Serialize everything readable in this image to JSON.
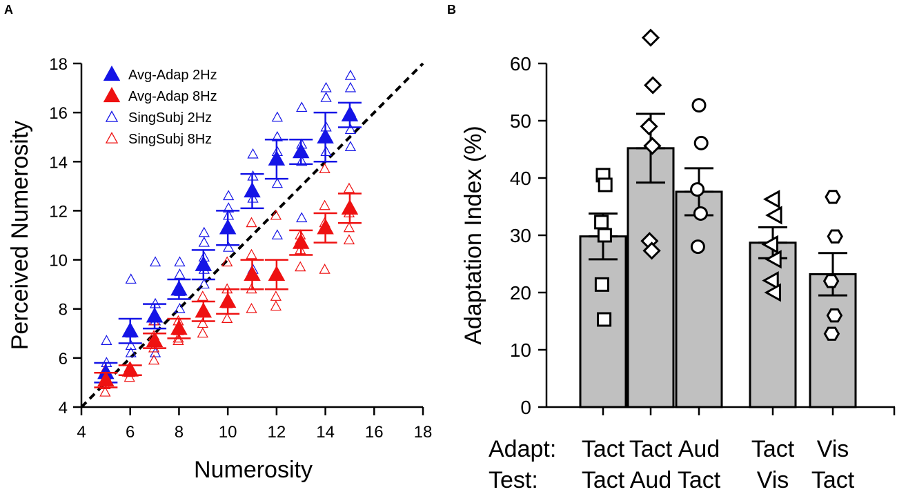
{
  "panel_a_letter": "A",
  "panel_b_letter": "B",
  "chart_data": [
    {
      "type": "scatter",
      "panel": "A",
      "xlabel": "Numerosity",
      "ylabel": "Perceived Numerosity",
      "xlim": [
        4,
        18
      ],
      "ylim": [
        4,
        18
      ],
      "xticks": [
        4,
        6,
        8,
        10,
        12,
        14,
        16,
        18
      ],
      "yticks": [
        4,
        6,
        8,
        10,
        12,
        14,
        16,
        18
      ],
      "reference_line": {
        "style": "dashed",
        "x": [
          4,
          18
        ],
        "y": [
          4,
          18
        ]
      },
      "legend": {
        "placement": "top-left",
        "entries": [
          {
            "label": "Avg-Adap 2Hz",
            "color": "#1414e6",
            "filled": true
          },
          {
            "label": "Avg-Adap 8Hz",
            "color": "#ee1111",
            "filled": true
          },
          {
            "label": "SingSubj 2Hz",
            "color": "#1414e6",
            "filled": false
          },
          {
            "label": "SingSubj 8Hz",
            "color": "#ee1111",
            "filled": false
          }
        ]
      },
      "series": [
        {
          "name": "Avg-Adap 2Hz",
          "color": "#1414e6",
          "x": [
            5,
            6,
            7,
            8,
            9,
            10,
            11,
            12,
            13,
            14,
            15
          ],
          "y": [
            5.4,
            7.1,
            7.7,
            8.8,
            9.8,
            11.3,
            12.8,
            14.1,
            14.4,
            15.0,
            15.9
          ],
          "err": [
            0.4,
            0.5,
            0.5,
            0.4,
            0.6,
            0.7,
            0.7,
            0.8,
            0.5,
            1.0,
            0.5
          ]
        },
        {
          "name": "Avg-Adap 8Hz",
          "color": "#ee1111",
          "x": [
            5,
            6,
            7,
            8,
            9,
            10,
            11,
            12,
            13,
            14,
            15
          ],
          "y": [
            5.1,
            5.5,
            6.7,
            7.2,
            7.9,
            8.3,
            9.4,
            9.4,
            10.7,
            11.3,
            12.1
          ],
          "err": [
            0.3,
            0.2,
            0.3,
            0.4,
            0.4,
            0.5,
            0.6,
            0.6,
            0.5,
            0.6,
            0.6
          ]
        },
        {
          "name": "SingSubj 2Hz",
          "color": "#1414e6",
          "x": [
            5,
            5,
            5,
            6,
            6,
            6,
            6,
            7,
            7,
            7,
            7,
            7,
            8,
            8,
            8,
            8,
            8,
            9,
            9,
            9,
            9,
            9,
            10,
            10,
            10,
            10,
            10,
            11,
            11,
            11,
            11,
            12,
            12,
            12,
            12,
            12,
            13,
            13,
            13,
            13,
            14,
            14,
            14,
            14,
            15,
            15,
            15,
            15,
            15
          ],
          "y": [
            6.7,
            5.8,
            5.1,
            9.2,
            7.0,
            6.5,
            6.2,
            9.9,
            8.2,
            7.5,
            6.7,
            6.2,
            9.9,
            9.4,
            8.7,
            8.0,
            7.2,
            11.1,
            10.7,
            10.1,
            9.6,
            9.0,
            12.6,
            12.1,
            11.8,
            11.3,
            10.5,
            14.3,
            13.4,
            12.5,
            9.6,
            15.8,
            15.0,
            14.4,
            13.1,
            11.0,
            16.2,
            14.7,
            14.0,
            11.7,
            17.0,
            16.6,
            15.4,
            14.4,
            17.5,
            17.0,
            16.0,
            15.3,
            14.6
          ],
          "filled": false
        },
        {
          "name": "SingSubj 8Hz",
          "color": "#ee1111",
          "x": [
            5,
            5,
            5,
            6,
            6,
            6,
            7,
            7,
            7,
            7,
            8,
            8,
            8,
            8,
            9,
            9,
            9,
            9,
            10,
            10,
            10,
            10,
            11,
            11,
            11,
            11,
            12,
            12,
            12,
            12,
            13,
            13,
            13,
            13,
            14,
            14,
            14,
            14,
            15,
            15,
            15,
            15
          ],
          "y": [
            5.5,
            4.9,
            4.6,
            5.6,
            5.4,
            5.2,
            7.5,
            6.9,
            6.4,
            5.9,
            7.5,
            7.1,
            6.8,
            6.7,
            8.5,
            7.9,
            7.4,
            7.0,
            9.9,
            8.8,
            8.2,
            7.6,
            11.5,
            10.2,
            8.8,
            8.0,
            11.8,
            9.4,
            8.5,
            8.1,
            11.0,
            10.8,
            10.4,
            9.7,
            13.7,
            12.2,
            11.5,
            9.6,
            12.9,
            11.9,
            11.3,
            10.8
          ],
          "filled": false
        }
      ]
    },
    {
      "type": "bar",
      "panel": "B",
      "ylabel": "Adaptation Index (%)",
      "ylim": [
        0,
        60
      ],
      "yticks": [
        0,
        10,
        20,
        30,
        40,
        50,
        60
      ],
      "row_labels": {
        "adapt": "Adapt:",
        "test": "Test:"
      },
      "categories": [
        {
          "adapt": "Tact",
          "test": "Tact",
          "value": 29.8,
          "err": 4.0,
          "marker": "square",
          "individual": [
            40.5,
            38.8,
            32.3,
            30.0,
            21.4,
            15.3
          ]
        },
        {
          "adapt": "Tact",
          "test": "Aud",
          "value": 45.2,
          "err": 6.0,
          "marker": "diamond",
          "individual": [
            64.5,
            56.2,
            49.0,
            45.6,
            29.0,
            27.3
          ]
        },
        {
          "adapt": "Aud",
          "test": "Tact",
          "value": 37.6,
          "err": 4.1,
          "marker": "circle",
          "individual": [
            52.7,
            46.1,
            38.0,
            33.8,
            28.0
          ]
        },
        {
          "adapt": "Tact",
          "test": "Vis",
          "value": 28.7,
          "err": 2.7,
          "marker": "triangle-left",
          "individual": [
            36.3,
            33.5,
            28.4,
            25.8,
            22.1,
            20.0
          ]
        },
        {
          "adapt": "Vis",
          "test": "Tact",
          "value": 23.2,
          "err": 3.7,
          "marker": "hexagon",
          "individual": [
            36.7,
            29.8,
            22.0,
            16.0,
            12.8
          ]
        }
      ],
      "bar_color": "#c0c0c0"
    }
  ]
}
